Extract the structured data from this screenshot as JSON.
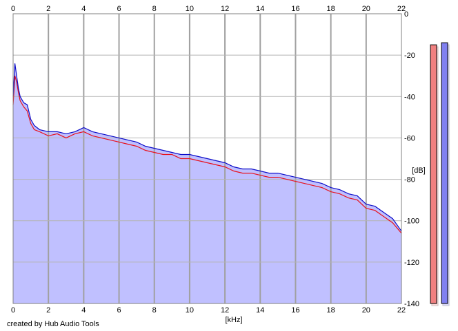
{
  "chart_data": {
    "type": "area",
    "x_unit_label": "[kHz]",
    "y_unit_label": "[dB]",
    "x_range": [
      0,
      22
    ],
    "y_range": [
      -140,
      0
    ],
    "x_ticks": [
      "0",
      "2",
      "4",
      "6",
      "8",
      "10",
      "12",
      "14",
      "16",
      "18",
      "20",
      "22"
    ],
    "y_ticks": [
      "0",
      "-20",
      "-40",
      "-60",
      "-80",
      "-100",
      "-120",
      "-140"
    ],
    "grid": true,
    "series": [
      {
        "color": "#e8101c",
        "x": [
          0.0,
          0.1,
          0.2,
          0.3,
          0.4,
          0.6,
          0.8,
          1.0,
          1.2,
          1.5,
          2.0,
          2.5,
          3.0,
          3.5,
          4.0,
          4.5,
          5.0,
          5.5,
          6.0,
          6.5,
          7.0,
          7.5,
          8.0,
          8.5,
          9.0,
          9.5,
          10.0,
          10.5,
          11.0,
          11.5,
          12.0,
          12.5,
          13.0,
          13.5,
          14.0,
          14.5,
          15.0,
          15.5,
          16.0,
          16.5,
          17.0,
          17.5,
          18.0,
          18.5,
          19.0,
          19.5,
          20.0,
          20.5,
          21.0,
          21.5,
          22.0
        ],
        "y": [
          -44,
          -30,
          -33,
          -38,
          -42,
          -45,
          -47,
          -53,
          -56,
          -57,
          -59,
          -58,
          -60,
          -58,
          -57,
          -59,
          -60,
          -61,
          -62,
          -63,
          -64,
          -66,
          -67,
          -68,
          -68,
          -70,
          -70,
          -71,
          -72,
          -73,
          -74,
          -76,
          -77,
          -77,
          -78,
          -79,
          -79,
          -80,
          -81,
          -82,
          -83,
          -84,
          -86,
          -87,
          -89,
          -90,
          -94,
          -95,
          -98,
          -101,
          -106
        ]
      },
      {
        "color": "#0c0cc8",
        "x": [
          0.0,
          0.1,
          0.2,
          0.3,
          0.4,
          0.6,
          0.8,
          1.0,
          1.2,
          1.5,
          2.0,
          2.5,
          3.0,
          3.5,
          4.0,
          4.5,
          5.0,
          5.5,
          6.0,
          6.5,
          7.0,
          7.5,
          8.0,
          8.5,
          9.0,
          9.5,
          10.0,
          10.5,
          11.0,
          11.5,
          12.0,
          12.5,
          13.0,
          13.5,
          14.0,
          14.5,
          15.0,
          15.5,
          16.0,
          16.5,
          17.0,
          17.5,
          18.0,
          18.5,
          19.0,
          19.5,
          20.0,
          20.5,
          21.0,
          21.5,
          22.0
        ],
        "y": [
          -40,
          -24,
          -30,
          -36,
          -40,
          -43,
          -44,
          -51,
          -54,
          -56,
          -57,
          -57,
          -58,
          -57,
          -55,
          -57,
          -58,
          -59,
          -60,
          -61,
          -62,
          -64,
          -65,
          -66,
          -67,
          -68,
          -68,
          -69,
          -70,
          -71,
          -72,
          -74,
          -75,
          -75,
          -76,
          -77,
          -77,
          -78,
          -79,
          -80,
          -81,
          -82,
          -84,
          -85,
          -87,
          -88,
          -92,
          -93,
          -96,
          -99,
          -105
        ]
      }
    ],
    "level_meters": [
      {
        "color": "#f08080",
        "top_db": -15
      },
      {
        "color": "#8080f0",
        "top_db": -14
      }
    ]
  },
  "footer": {
    "credit": "created by Hub Audio Tools"
  }
}
